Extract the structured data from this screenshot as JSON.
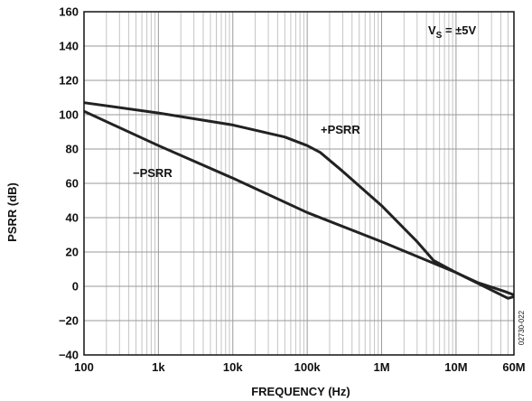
{
  "chart_data": {
    "type": "line",
    "xscale": "log",
    "xlim": [
      100,
      60000000
    ],
    "ylim": [
      -40,
      160
    ],
    "grid": true,
    "xlabel": "FREQUENCY (Hz)",
    "ylabel": "PSRR (dB)",
    "x_ticks": [
      {
        "value": 100,
        "label": "100"
      },
      {
        "value": 1000,
        "label": "1k"
      },
      {
        "value": 10000,
        "label": "10k"
      },
      {
        "value": 100000,
        "label": "100k"
      },
      {
        "value": 1000000,
        "label": "1M"
      },
      {
        "value": 10000000,
        "label": "10M"
      },
      {
        "value": 60000000,
        "label": "60M"
      }
    ],
    "y_ticks": [
      160,
      140,
      120,
      100,
      80,
      60,
      40,
      20,
      0,
      -20,
      -40
    ],
    "series": [
      {
        "name": "+PSRR",
        "color": "#222222",
        "points": [
          [
            100,
            107
          ],
          [
            1000,
            101
          ],
          [
            10000,
            94
          ],
          [
            50000,
            87
          ],
          [
            100000,
            82
          ],
          [
            150000,
            78
          ],
          [
            300000,
            67
          ],
          [
            1000000,
            47
          ],
          [
            3000000,
            26
          ],
          [
            5000000,
            15
          ],
          [
            10000000,
            8
          ],
          [
            20000000,
            2
          ],
          [
            45000000,
            -3
          ],
          [
            60000000,
            -5
          ]
        ]
      },
      {
        "name": "−PSRR",
        "color": "#222222",
        "points": [
          [
            100,
            102
          ],
          [
            1000,
            82
          ],
          [
            10000,
            63
          ],
          [
            100000,
            43
          ],
          [
            1000000,
            26
          ],
          [
            10000000,
            8
          ],
          [
            50000000,
            -7
          ],
          [
            60000000,
            -6
          ]
        ]
      }
    ],
    "annotations": {
      "plus_label": "+PSRR",
      "minus_label": "−PSRR",
      "condition_main": "V",
      "condition_sub": "S",
      "condition_rest": " = ±5V"
    },
    "figure_id": "02730-022"
  }
}
